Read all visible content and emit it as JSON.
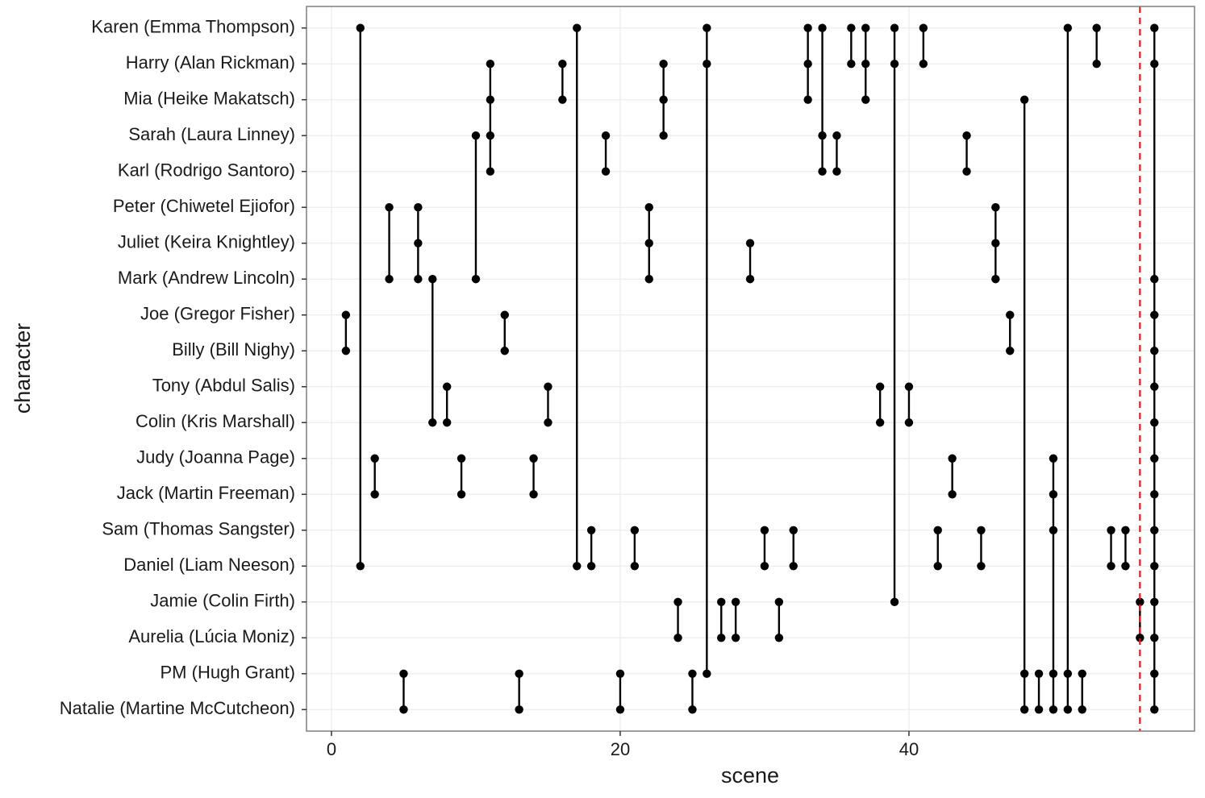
{
  "chart_data": {
    "type": "dumbbell",
    "x_label": "scene",
    "y_label": "character",
    "categories": [
      "Karen (Emma Thompson)",
      "Harry (Alan Rickman)",
      "Mia (Heike Makatsch)",
      "Sarah (Laura Linney)",
      "Karl (Rodrigo Santoro)",
      "Peter (Chiwetel Ejiofor)",
      "Juliet (Keira Knightley)",
      "Mark (Andrew Lincoln)",
      "Joe (Gregor Fisher)",
      "Billy (Bill Nighy)",
      "Tony (Abdul Salis)",
      "Colin (Kris Marshall)",
      "Judy (Joanna Page)",
      "Jack (Martin Freeman)",
      "Sam (Thomas Sangster)",
      "Daniel (Liam Neeson)",
      "Jamie (Colin Firth)",
      "Aurelia (Lúcia Moniz)",
      "PM (Hugh Grant)",
      "Natalie (Martine McCutcheon)"
    ],
    "scenes": [
      {
        "scene": 1,
        "characters": [
          "Joe (Gregor Fisher)",
          "Billy (Bill Nighy)"
        ]
      },
      {
        "scene": 2,
        "characters": [
          "Karen (Emma Thompson)",
          "Daniel (Liam Neeson)"
        ]
      },
      {
        "scene": 3,
        "characters": [
          "Judy (Joanna Page)",
          "Jack (Martin Freeman)"
        ]
      },
      {
        "scene": 4,
        "characters": [
          "Peter (Chiwetel Ejiofor)",
          "Mark (Andrew Lincoln)"
        ]
      },
      {
        "scene": 5,
        "characters": [
          "PM (Hugh Grant)",
          "Natalie (Martine McCutcheon)"
        ]
      },
      {
        "scene": 6,
        "characters": [
          "Peter (Chiwetel Ejiofor)",
          "Juliet (Keira Knightley)",
          "Mark (Andrew Lincoln)"
        ]
      },
      {
        "scene": 7,
        "characters": [
          "Mark (Andrew Lincoln)",
          "Colin (Kris Marshall)"
        ]
      },
      {
        "scene": 8,
        "characters": [
          "Tony (Abdul Salis)",
          "Colin (Kris Marshall)"
        ]
      },
      {
        "scene": 9,
        "characters": [
          "Judy (Joanna Page)",
          "Jack (Martin Freeman)"
        ]
      },
      {
        "scene": 10,
        "characters": [
          "Sarah (Laura Linney)",
          "Mark (Andrew Lincoln)"
        ]
      },
      {
        "scene": 11,
        "characters": [
          "Harry (Alan Rickman)",
          "Mia (Heike Makatsch)",
          "Sarah (Laura Linney)",
          "Karl (Rodrigo Santoro)"
        ]
      },
      {
        "scene": 12,
        "characters": [
          "Joe (Gregor Fisher)",
          "Billy (Bill Nighy)"
        ]
      },
      {
        "scene": 13,
        "characters": [
          "PM (Hugh Grant)",
          "Natalie (Martine McCutcheon)"
        ]
      },
      {
        "scene": 14,
        "characters": [
          "Judy (Joanna Page)",
          "Jack (Martin Freeman)"
        ]
      },
      {
        "scene": 15,
        "characters": [
          "Tony (Abdul Salis)",
          "Colin (Kris Marshall)"
        ]
      },
      {
        "scene": 16,
        "characters": [
          "Harry (Alan Rickman)",
          "Mia (Heike Makatsch)"
        ]
      },
      {
        "scene": 17,
        "characters": [
          "Karen (Emma Thompson)",
          "Daniel (Liam Neeson)"
        ]
      },
      {
        "scene": 18,
        "characters": [
          "Sam (Thomas Sangster)",
          "Daniel (Liam Neeson)"
        ]
      },
      {
        "scene": 19,
        "characters": [
          "Sarah (Laura Linney)",
          "Karl (Rodrigo Santoro)"
        ]
      },
      {
        "scene": 20,
        "characters": [
          "PM (Hugh Grant)",
          "Natalie (Martine McCutcheon)"
        ]
      },
      {
        "scene": 21,
        "characters": [
          "Sam (Thomas Sangster)",
          "Daniel (Liam Neeson)"
        ]
      },
      {
        "scene": 22,
        "characters": [
          "Peter (Chiwetel Ejiofor)",
          "Juliet (Keira Knightley)",
          "Mark (Andrew Lincoln)"
        ]
      },
      {
        "scene": 23,
        "characters": [
          "Harry (Alan Rickman)",
          "Mia (Heike Makatsch)",
          "Sarah (Laura Linney)"
        ]
      },
      {
        "scene": 24,
        "characters": [
          "Jamie (Colin Firth)",
          "Aurelia (Lúcia Moniz)"
        ]
      },
      {
        "scene": 25,
        "characters": [
          "PM (Hugh Grant)",
          "Natalie (Martine McCutcheon)"
        ]
      },
      {
        "scene": 26,
        "characters": [
          "Karen (Emma Thompson)",
          "Harry (Alan Rickman)",
          "PM (Hugh Grant)"
        ]
      },
      {
        "scene": 27,
        "characters": [
          "Jamie (Colin Firth)",
          "Aurelia (Lúcia Moniz)"
        ]
      },
      {
        "scene": 28,
        "characters": [
          "Jamie (Colin Firth)",
          "Aurelia (Lúcia Moniz)"
        ]
      },
      {
        "scene": 29,
        "characters": [
          "Juliet (Keira Knightley)",
          "Mark (Andrew Lincoln)"
        ]
      },
      {
        "scene": 30,
        "characters": [
          "Sam (Thomas Sangster)",
          "Daniel (Liam Neeson)"
        ]
      },
      {
        "scene": 31,
        "characters": [
          "Jamie (Colin Firth)",
          "Aurelia (Lúcia Moniz)"
        ]
      },
      {
        "scene": 32,
        "characters": [
          "Sam (Thomas Sangster)",
          "Daniel (Liam Neeson)"
        ]
      },
      {
        "scene": 33,
        "characters": [
          "Karen (Emma Thompson)",
          "Harry (Alan Rickman)",
          "Mia (Heike Makatsch)"
        ]
      },
      {
        "scene": 34,
        "characters": [
          "Karen (Emma Thompson)",
          "Sarah (Laura Linney)",
          "Karl (Rodrigo Santoro)"
        ]
      },
      {
        "scene": 35,
        "characters": [
          "Sarah (Laura Linney)",
          "Karl (Rodrigo Santoro)"
        ]
      },
      {
        "scene": 36,
        "characters": [
          "Karen (Emma Thompson)",
          "Harry (Alan Rickman)"
        ]
      },
      {
        "scene": 37,
        "characters": [
          "Karen (Emma Thompson)",
          "Harry (Alan Rickman)",
          "Mia (Heike Makatsch)"
        ]
      },
      {
        "scene": 38,
        "characters": [
          "Tony (Abdul Salis)",
          "Colin (Kris Marshall)"
        ]
      },
      {
        "scene": 39,
        "characters": [
          "Karen (Emma Thompson)",
          "Harry (Alan Rickman)",
          "Jamie (Colin Firth)"
        ]
      },
      {
        "scene": 40,
        "characters": [
          "Tony (Abdul Salis)",
          "Colin (Kris Marshall)"
        ]
      },
      {
        "scene": 41,
        "characters": [
          "Karen (Emma Thompson)",
          "Harry (Alan Rickman)"
        ]
      },
      {
        "scene": 42,
        "characters": [
          "Sam (Thomas Sangster)",
          "Daniel (Liam Neeson)"
        ]
      },
      {
        "scene": 43,
        "characters": [
          "Judy (Joanna Page)",
          "Jack (Martin Freeman)"
        ]
      },
      {
        "scene": 44,
        "characters": [
          "Sarah (Laura Linney)",
          "Karl (Rodrigo Santoro)"
        ]
      },
      {
        "scene": 45,
        "characters": [
          "Sam (Thomas Sangster)",
          "Daniel (Liam Neeson)"
        ]
      },
      {
        "scene": 46,
        "characters": [
          "Peter (Chiwetel Ejiofor)",
          "Juliet (Keira Knightley)",
          "Mark (Andrew Lincoln)"
        ]
      },
      {
        "scene": 47,
        "characters": [
          "Joe (Gregor Fisher)",
          "Billy (Bill Nighy)"
        ]
      },
      {
        "scene": 48,
        "characters": [
          "Mia (Heike Makatsch)",
          "PM (Hugh Grant)",
          "Natalie (Martine McCutcheon)"
        ]
      },
      {
        "scene": 49,
        "characters": [
          "PM (Hugh Grant)",
          "Natalie (Martine McCutcheon)"
        ]
      },
      {
        "scene": 50,
        "characters": [
          "Judy (Joanna Page)",
          "Jack (Martin Freeman)",
          "Sam (Thomas Sangster)",
          "PM (Hugh Grant)",
          "Natalie (Martine McCutcheon)"
        ]
      },
      {
        "scene": 51,
        "characters": [
          "Karen (Emma Thompson)",
          "PM (Hugh Grant)",
          "Natalie (Martine McCutcheon)"
        ]
      },
      {
        "scene": 52,
        "characters": [
          "PM (Hugh Grant)",
          "Natalie (Martine McCutcheon)"
        ]
      },
      {
        "scene": 53,
        "characters": [
          "Karen (Emma Thompson)",
          "Harry (Alan Rickman)"
        ]
      },
      {
        "scene": 54,
        "characters": [
          "Sam (Thomas Sangster)",
          "Daniel (Liam Neeson)"
        ]
      },
      {
        "scene": 55,
        "characters": [
          "Sam (Thomas Sangster)",
          "Daniel (Liam Neeson)"
        ]
      },
      {
        "scene": 56,
        "characters": [
          "Jamie (Colin Firth)",
          "Aurelia (Lúcia Moniz)"
        ]
      },
      {
        "scene": 57,
        "characters": [
          "Karen (Emma Thompson)",
          "Harry (Alan Rickman)",
          "Mark (Andrew Lincoln)",
          "Joe (Gregor Fisher)",
          "Billy (Bill Nighy)",
          "Tony (Abdul Salis)",
          "Colin (Kris Marshall)",
          "Judy (Joanna Page)",
          "Jack (Martin Freeman)",
          "Sam (Thomas Sangster)",
          "Daniel (Liam Neeson)",
          "Jamie (Colin Firth)",
          "Aurelia (Lúcia Moniz)",
          "PM (Hugh Grant)",
          "Natalie (Martine McCutcheon)"
        ]
      }
    ],
    "color": "#000000",
    "xlim": [
      -1.73,
      59.78
    ],
    "xticks": [
      0,
      20,
      40
    ],
    "vline": 56,
    "vline_color": "#e41a1c",
    "grid": true
  }
}
